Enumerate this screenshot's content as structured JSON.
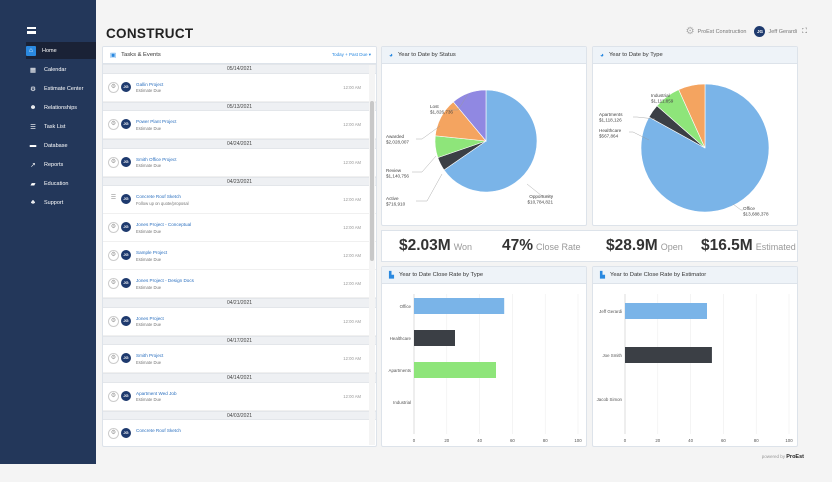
{
  "nav": [
    {
      "label": "Home",
      "icon": "home-icon",
      "glyph": "⌂"
    },
    {
      "label": "Calendar",
      "icon": "calendar-icon",
      "glyph": "▦"
    },
    {
      "label": "Estimate Center",
      "icon": "gear-icon",
      "glyph": "⚙"
    },
    {
      "label": "Relationships",
      "icon": "users-icon",
      "glyph": "☻"
    },
    {
      "label": "Task List",
      "icon": "list-icon",
      "glyph": "☰"
    },
    {
      "label": "Database",
      "icon": "database-icon",
      "glyph": "▬"
    },
    {
      "label": "Reports",
      "icon": "chart-icon",
      "glyph": "↗"
    },
    {
      "label": "Education",
      "icon": "education-icon",
      "glyph": "▰"
    },
    {
      "label": "Support",
      "icon": "support-icon",
      "glyph": "♣"
    }
  ],
  "header": {
    "logo": "CONSTRUCT",
    "company": "ProEst Construction",
    "user_initials": "JG",
    "user": "Jeff Gerardi"
  },
  "tasks": {
    "title": "Tasks & Events",
    "filter": "Today + Past Due",
    "rows": [
      {
        "type": "date",
        "text": "05/14/2021"
      },
      {
        "type": "task",
        "name": "Gallin Project",
        "sub": "Estimate Due",
        "time": "12:00 AM",
        "initials": "JG",
        "icon": "gear"
      },
      {
        "type": "date",
        "text": "05/13/2021"
      },
      {
        "type": "task",
        "name": "Power Plant Project",
        "sub": "Estimate Due",
        "time": "12:00 AM",
        "initials": "JG",
        "icon": "gear"
      },
      {
        "type": "date",
        "text": "04/24/2021"
      },
      {
        "type": "task",
        "name": "Smith Office Project",
        "sub": "Estimate Due",
        "time": "12:00 AM",
        "initials": "JG",
        "icon": "gear"
      },
      {
        "type": "date",
        "text": "04/23/2021"
      },
      {
        "type": "task",
        "name": "Concrete Roof Sketch",
        "sub": "Follow up on quote/proposal",
        "time": "12:00 AM",
        "initials": "JG",
        "icon": "list"
      },
      {
        "type": "task",
        "name": "Jones Project - Conceptual",
        "sub": "Estimate Due",
        "time": "12:00 AM",
        "initials": "JG",
        "icon": "gear"
      },
      {
        "type": "task",
        "name": "Sample Project",
        "sub": "Estimate Due",
        "time": "12:00 AM",
        "initials": "JG",
        "icon": "gear"
      },
      {
        "type": "task",
        "name": "Jones Project - Design Docs",
        "sub": "Estimate Due",
        "time": "12:00 AM",
        "initials": "JG",
        "icon": "gear"
      },
      {
        "type": "date",
        "text": "04/21/2021"
      },
      {
        "type": "task",
        "name": "Jones Project",
        "sub": "Estimate Due",
        "time": "12:00 AM",
        "initials": "JG",
        "icon": "gear"
      },
      {
        "type": "date",
        "text": "04/17/2021"
      },
      {
        "type": "task",
        "name": "Smith Project",
        "sub": "Estimate Due",
        "time": "12:00 AM",
        "initials": "JG",
        "icon": "gear"
      },
      {
        "type": "date",
        "text": "04/14/2021"
      },
      {
        "type": "task",
        "name": "Apartment Wed Job",
        "sub": "Estimate Due",
        "time": "12:00 AM",
        "initials": "JG",
        "icon": "gear"
      },
      {
        "type": "date",
        "text": "04/03/2021"
      },
      {
        "type": "task",
        "name": "Concrete Roof Sketch",
        "sub": "",
        "time": "",
        "initials": "JG",
        "icon": "gear"
      }
    ]
  },
  "kpis": [
    {
      "value": "$2.03M",
      "label": "Won"
    },
    {
      "value": "47%",
      "label": "Close Rate"
    },
    {
      "value": "$28.9M",
      "label": "Open"
    },
    {
      "value": "$16.5M",
      "label": "Estimated"
    }
  ],
  "chart_data": [
    {
      "type": "pie",
      "title": "Year to Date by Status",
      "slices": [
        {
          "label": "Opportunity",
          "value": 10784821,
          "display": "$10,784,821",
          "color": "#7ab4e8"
        },
        {
          "label": "Active",
          "value": 716910,
          "display": "$716,910",
          "color": "#3b3f45"
        },
        {
          "label": "Review",
          "value": 1140756,
          "display": "$1,140,756",
          "color": "#8ee57a"
        },
        {
          "label": "Awarded",
          "value": 2028007,
          "display": "$2,028,007",
          "color": "#f4a460"
        },
        {
          "label": "Lost",
          "value": 1826736,
          "display": "$1,826,736",
          "color": "#9088e2"
        }
      ]
    },
    {
      "type": "pie",
      "title": "Year to Date by Type",
      "slices": [
        {
          "label": "Office",
          "value": 13688378,
          "display": "$13,688,378",
          "color": "#7ab4e8"
        },
        {
          "label": "Healthcare",
          "value": 567864,
          "display": "$567,864",
          "color": "#3b3f45"
        },
        {
          "label": "Apartments",
          "value": 1118126,
          "display": "$1,118,126",
          "color": "#8ee57a"
        },
        {
          "label": "Industrial",
          "value": 1111859,
          "display": "$1,111,859",
          "color": "#f4a460"
        }
      ]
    },
    {
      "type": "bar",
      "title": "Year to Date Close Rate by Type",
      "orientation": "horizontal",
      "categories": [
        "Office",
        "Healthcare",
        "Apartments",
        "Industrial"
      ],
      "values": [
        55,
        25,
        50,
        0
      ],
      "colors": [
        "#7ab4e8",
        "#3b3f45",
        "#8ee57a",
        "#f4a460"
      ],
      "xlabel": "Close Rate",
      "xlim": [
        0,
        100
      ],
      "xticks": [
        0,
        20,
        40,
        60,
        80,
        100
      ]
    },
    {
      "type": "bar",
      "title": "Year to Date Close Rate by Estimator",
      "orientation": "horizontal",
      "categories": [
        "Jeff Gerardi",
        "Joe Smith",
        "Jacob Simon"
      ],
      "values": [
        50,
        53,
        0
      ],
      "colors": [
        "#7ab4e8",
        "#3b3f45",
        "#8ee57a"
      ],
      "xlabel": "Close Rate",
      "xlim": [
        0,
        100
      ],
      "xticks": [
        0,
        20,
        40,
        60,
        80,
        100
      ]
    }
  ],
  "footer": {
    "prefix": "powered by",
    "brand": "ProEst"
  }
}
